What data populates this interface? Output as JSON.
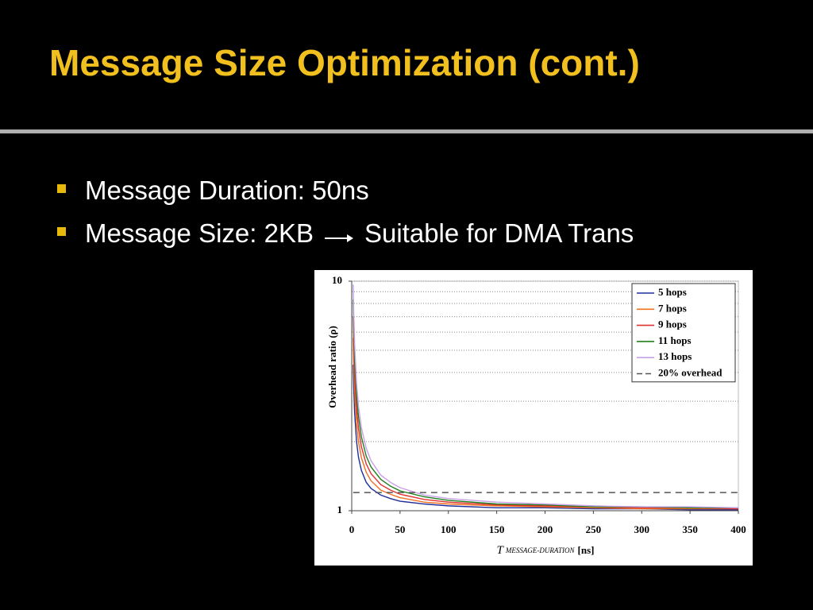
{
  "slide": {
    "title": "Message Size Optimization (cont.)",
    "bullets": [
      [
        "Message Duration: 50ns"
      ],
      [
        "Message Size: 2KB",
        "Suitable for DMA Trans"
      ]
    ]
  },
  "chart_data": {
    "type": "line",
    "ylabel": "Overhead ratio (ρ)",
    "xlabel": "T",
    "xlabel_subscript": "MESSAGE-DURATION",
    "xlabel_unit": "[ns]",
    "x": [
      1.5,
      2,
      3,
      5,
      7,
      10,
      15,
      20,
      30,
      40,
      50,
      75,
      100,
      150,
      200,
      250,
      300,
      350,
      400
    ],
    "series": [
      {
        "name": "5 hops",
        "color": "#1f2f9a",
        "values": [
          4.33,
          3.5,
          2.67,
          2,
          1.71,
          1.5,
          1.33,
          1.25,
          1.17,
          1.13,
          1.1,
          1.07,
          1.05,
          1.03,
          1.03,
          1.02,
          1.02,
          1.01,
          1.01
        ]
      },
      {
        "name": "7 hops",
        "color": "#f07020",
        "values": [
          5.67,
          4.5,
          3.33,
          2.4,
          2,
          1.7,
          1.47,
          1.35,
          1.23,
          1.18,
          1.14,
          1.09,
          1.07,
          1.05,
          1.04,
          1.03,
          1.02,
          1.02,
          1.02
        ]
      },
      {
        "name": "9 hops",
        "color": "#e03030",
        "values": [
          7,
          5.5,
          4,
          2.8,
          2.29,
          1.9,
          1.6,
          1.45,
          1.3,
          1.23,
          1.18,
          1.12,
          1.09,
          1.06,
          1.05,
          1.04,
          1.03,
          1.03,
          1.02
        ]
      },
      {
        "name": "11 hops",
        "color": "#208020",
        "values": [
          8.33,
          6.5,
          4.67,
          3.2,
          2.57,
          2.1,
          1.73,
          1.55,
          1.37,
          1.28,
          1.22,
          1.15,
          1.11,
          1.07,
          1.06,
          1.04,
          1.04,
          1.03,
          1.03
        ]
      },
      {
        "name": "13 hops",
        "color": "#c8a0e8",
        "values": [
          9.67,
          7.5,
          5.33,
          3.6,
          2.86,
          2.3,
          1.87,
          1.65,
          1.43,
          1.33,
          1.26,
          1.17,
          1.13,
          1.09,
          1.07,
          1.05,
          1.04,
          1.04,
          1.03
        ]
      },
      {
        "name": "20% overhead",
        "color": "#555555",
        "dashed": true,
        "values": [
          1.2,
          1.2,
          1.2,
          1.2,
          1.2,
          1.2,
          1.2,
          1.2,
          1.2,
          1.2,
          1.2,
          1.2,
          1.2,
          1.2,
          1.2,
          1.2,
          1.2,
          1.2,
          1.2
        ]
      }
    ],
    "xlim": [
      0,
      400
    ],
    "xticks": [
      0,
      50,
      100,
      150,
      200,
      250,
      300,
      350,
      400
    ],
    "ylim": [
      1,
      10
    ],
    "yticks": [
      1,
      10
    ],
    "log_y": true,
    "grid_yticks": [
      2,
      3,
      4,
      5,
      6,
      7,
      8,
      9,
      10
    ],
    "grid": true,
    "legend": "upper right"
  }
}
